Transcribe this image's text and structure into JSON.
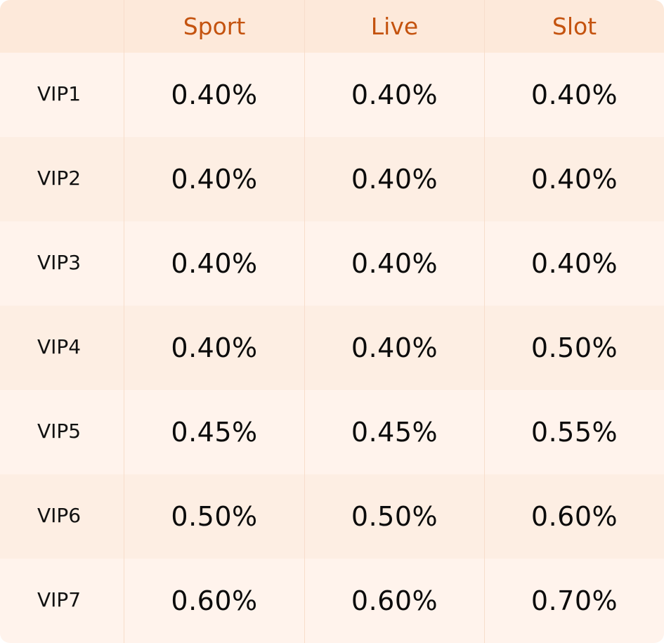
{
  "columns": [
    "",
    "Sport",
    "Live",
    "Slot"
  ],
  "rows": [
    {
      "level": "VIP1",
      "sport": "0.40%",
      "live": "0.40%",
      "slot": "0.40%"
    },
    {
      "level": "VIP2",
      "sport": "0.40%",
      "live": "0.40%",
      "slot": "0.40%"
    },
    {
      "level": "VIP3",
      "sport": "0.40%",
      "live": "0.40%",
      "slot": "0.40%"
    },
    {
      "level": "VIP4",
      "sport": "0.40%",
      "live": "0.40%",
      "slot": "0.50%"
    },
    {
      "level": "VIP5",
      "sport": "0.45%",
      "live": "0.45%",
      "slot": "0.55%"
    },
    {
      "level": "VIP6",
      "sport": "0.50%",
      "live": "0.50%",
      "slot": "0.60%"
    },
    {
      "level": "VIP7",
      "sport": "0.60%",
      "live": "0.60%",
      "slot": "0.70%"
    }
  ],
  "colors": {
    "header_bg": "#fde9da",
    "header_text": "#c4530f",
    "row_light": "#fff3ec",
    "row_dark": "#fdeee3",
    "divider": "#f7ddcb"
  }
}
